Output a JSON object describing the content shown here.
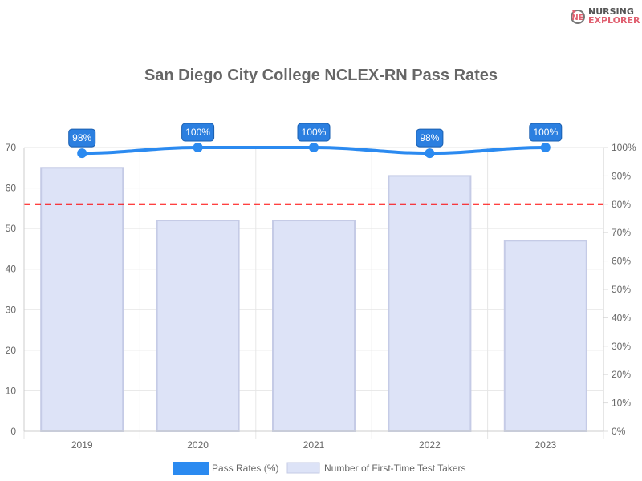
{
  "logo": {
    "line1": "NURSING",
    "line2": "EXPLORER"
  },
  "chart_data": {
    "type": "bar+line",
    "title": "San Diego City College NCLEX-RN Pass Rates",
    "categories": [
      "2019",
      "2020",
      "2021",
      "2022",
      "2023"
    ],
    "series": [
      {
        "name": "Pass Rates (%)",
        "type": "line",
        "axis": "right",
        "values": [
          98,
          100,
          100,
          98,
          100
        ],
        "labels": [
          "98%",
          "100%",
          "100%",
          "98%",
          "100%"
        ],
        "color": "#2b8af0"
      },
      {
        "name": "Number of First-Time Test Takers",
        "type": "bar",
        "axis": "left",
        "values": [
          65,
          52,
          52,
          63,
          47
        ],
        "color": "#dde3f7"
      }
    ],
    "threshold": {
      "value": 80,
      "axis": "right",
      "color": "#ff0000",
      "style": "dashed"
    },
    "left_axis": {
      "ylim": [
        0,
        70
      ],
      "ticks": [
        "0",
        "10",
        "20",
        "30",
        "40",
        "50",
        "60",
        "70"
      ]
    },
    "right_axis": {
      "ylim": [
        0,
        100
      ],
      "ticks": [
        "0%",
        "10%",
        "20%",
        "30%",
        "40%",
        "50%",
        "60%",
        "70%",
        "80%",
        "90%",
        "100%"
      ]
    },
    "grid": true,
    "legend": "bottom"
  }
}
